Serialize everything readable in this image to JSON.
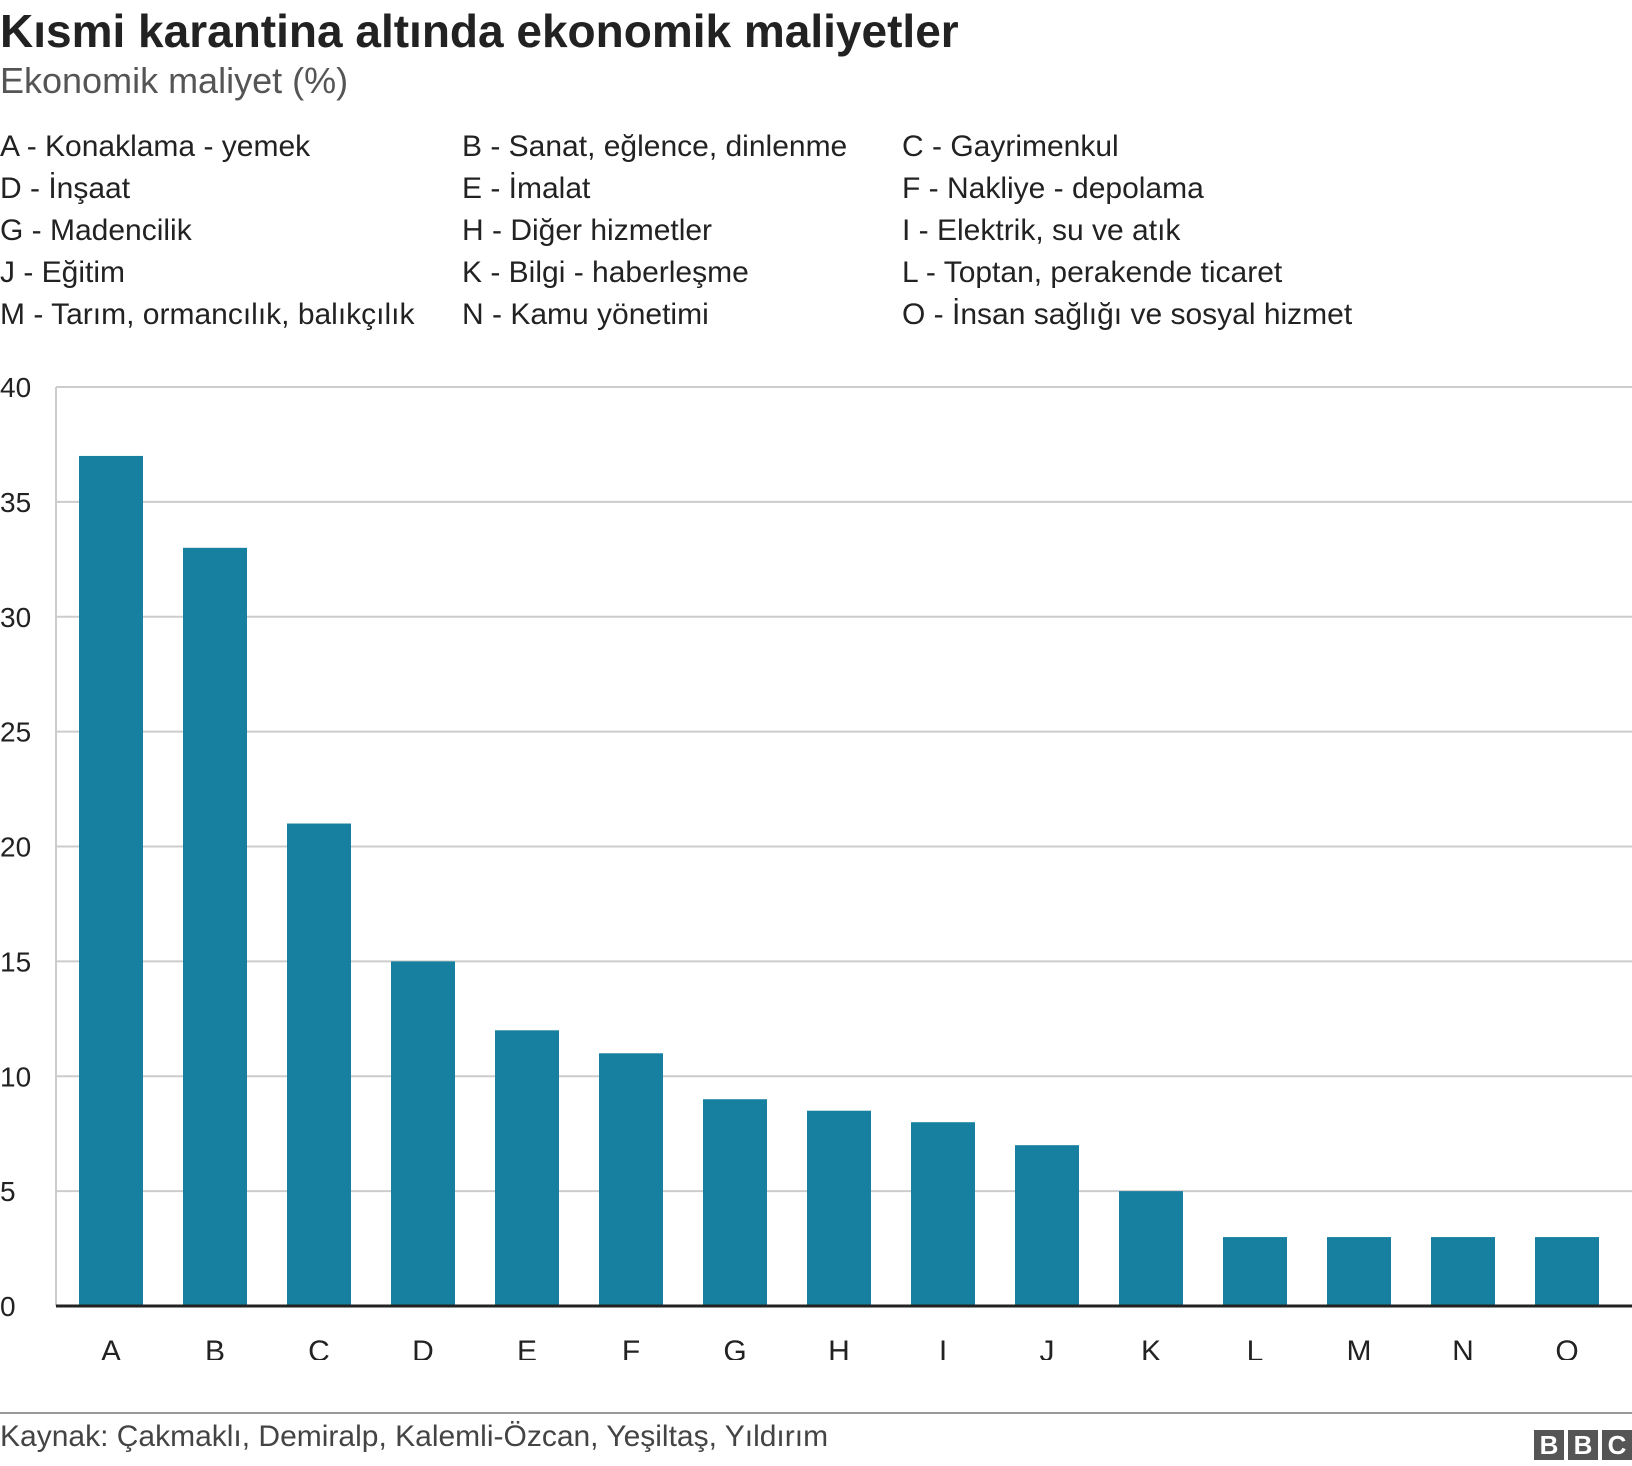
{
  "title": "Kısmi karantina altında ekonomik maliyetler",
  "subtitle": "Ekonomik maliyet (%)",
  "legend": [
    "A - Konaklama - yemek",
    "B - Sanat, eğlence, dinlenme",
    "C - Gayrimenkul",
    "D - İnşaat",
    "E - İmalat",
    "F - Nakliye - depolama",
    "G - Madencilik",
    "H - Diğer hizmetler",
    "I - Elektrik, su ve atık",
    "J - Eğitim",
    "K - Bilgi - haberleşme",
    "L - Toptan, perakende ticaret",
    "M - Tarım, ormancılık, balıkçılık",
    "N - Kamu yönetimi",
    "O - İnsan sağlığı ve sosyal hizmet"
  ],
  "source": "Kaynak: Çakmaklı, Demiralp, Kalemli-Özcan, Yeşiltaş, Yıldırım",
  "logo": [
    "B",
    "B",
    "C"
  ],
  "colors": {
    "bar": "#1780a1",
    "grid": "#cccccc",
    "axis": "#222222"
  },
  "chart_data": {
    "type": "bar",
    "categories": [
      "A",
      "B",
      "C",
      "D",
      "E",
      "F",
      "G",
      "H",
      "I",
      "J",
      "K",
      "L",
      "M",
      "N",
      "O"
    ],
    "values": [
      37,
      33,
      21,
      15,
      12,
      11,
      9,
      8.5,
      8,
      7,
      5,
      3,
      3,
      3,
      3
    ],
    "ylim": [
      0,
      40
    ],
    "yticks": [
      0,
      5,
      10,
      15,
      20,
      25,
      30,
      35,
      40
    ],
    "grid": true
  }
}
